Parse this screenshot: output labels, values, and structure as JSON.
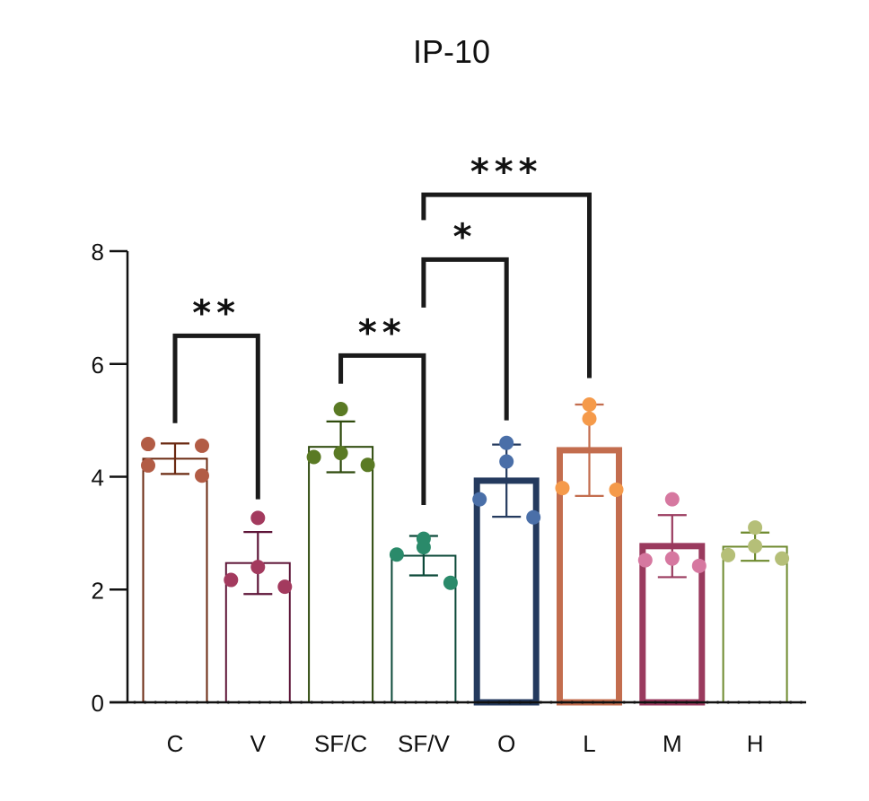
{
  "chart_data": {
    "type": "bar",
    "title": "IP-10",
    "xlabel": "",
    "ylabel": "",
    "ylim": [
      0,
      8
    ],
    "yticks": [
      "0",
      "2",
      "4",
      "6",
      "8"
    ],
    "categories": [
      "C",
      "V",
      "SF/C",
      "SF/V",
      "O",
      "L",
      "M",
      "H"
    ],
    "bars": [
      {
        "label": "C",
        "mean": 4.32,
        "sd": 0.27,
        "points": [
          4.58,
          4.02,
          4.55,
          4.2
        ],
        "color": "#6b2a12",
        "thick": false
      },
      {
        "label": "V",
        "mean": 2.47,
        "sd": 0.55,
        "points": [
          3.27,
          2.4,
          2.05,
          2.17
        ],
        "color": "#5e1538",
        "thick": false
      },
      {
        "label": "SF/C",
        "mean": 4.53,
        "sd": 0.45,
        "points": [
          5.2,
          4.42,
          4.21,
          4.35
        ],
        "color": "#2e4a0c",
        "thick": false
      },
      {
        "label": "SF/V",
        "mean": 2.6,
        "sd": 0.35,
        "points": [
          2.9,
          2.75,
          2.12,
          2.62
        ],
        "color": "#0d4a3a",
        "thick": false
      },
      {
        "label": "O",
        "mean": 3.93,
        "sd": 0.64,
        "points": [
          4.6,
          4.27,
          3.6,
          3.28
        ],
        "color": "#243a5e",
        "thick": true
      },
      {
        "label": "L",
        "mean": 4.47,
        "sd": 0.81,
        "points": [
          5.28,
          5.03,
          3.77,
          3.8
        ],
        "color": "#c36d4e",
        "thick": true
      },
      {
        "label": "M",
        "mean": 2.77,
        "sd": 0.55,
        "points": [
          3.6,
          2.55,
          2.42,
          2.52
        ],
        "color": "#9a3a5e",
        "thick": true
      },
      {
        "label": "H",
        "mean": 2.76,
        "sd": 0.25,
        "points": [
          3.1,
          2.77,
          2.55,
          2.61
        ],
        "color": "#6e8a2e",
        "thick": false
      }
    ],
    "point_colors": [
      "#b25c45",
      "#a33a5e",
      "#5a7a24",
      "#2a8a6a",
      "#4a6fa8",
      "#f59a4a",
      "#d678a0",
      "#b5bf78"
    ],
    "significance": [
      {
        "from": "C",
        "to": "V",
        "label": "**",
        "left_y": 4.95,
        "right_y": 3.6,
        "top_y": 6.5
      },
      {
        "from": "SF/C",
        "to": "SF/V",
        "label": "**",
        "left_y": 5.65,
        "right_y": 3.5,
        "top_y": 6.15
      },
      {
        "from": "SF/V",
        "to": "O",
        "label": "*",
        "left_y": 7.0,
        "right_y": 5.0,
        "top_y": 7.85
      },
      {
        "from": "SF/V",
        "to": "L",
        "label": "***",
        "left_y": 8.55,
        "right_y": 5.75,
        "top_y": 9.0
      }
    ]
  }
}
